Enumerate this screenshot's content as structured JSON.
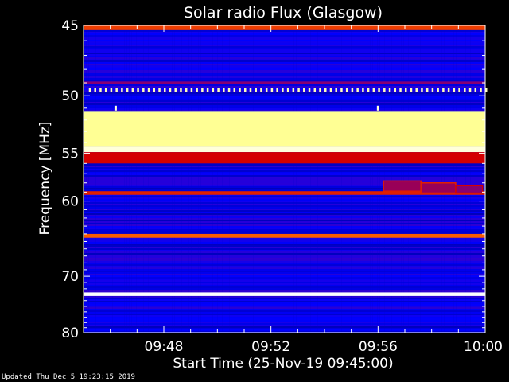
{
  "chart_data": {
    "type": "heatmap",
    "title": "Solar radio Flux (Glasgow)",
    "xlabel": "Start Time (25-Nov-19 09:45:00)",
    "ylabel": "Frequency [MHz]",
    "x_range_minutes": [
      0,
      15
    ],
    "x_ticks": [
      {
        "label": "09:48",
        "minute": 3
      },
      {
        "label": "09:52",
        "minute": 7
      },
      {
        "label": "09:56",
        "minute": 11
      },
      {
        "label": "10:00",
        "minute": 15
      }
    ],
    "y_range_mhz": [
      45,
      80
    ],
    "y_scale": "reciprocal",
    "y_ticks": [
      45,
      50,
      55,
      60,
      70,
      80
    ],
    "colormap": [
      "#000066",
      "#0000ff",
      "#7f0080",
      "#d40000",
      "#ff6600",
      "#ffff88",
      "#ffffff"
    ],
    "emission_bands": [
      {
        "mhz_from": 45.0,
        "mhz_to": 45.3,
        "level": 0.6
      },
      {
        "mhz_from": 48.9,
        "mhz_to": 49.1,
        "level": 0.35
      },
      {
        "mhz_from": 51.3,
        "mhz_to": 54.4,
        "level": 0.85
      },
      {
        "mhz_from": 54.4,
        "mhz_to": 54.9,
        "level": 0.95
      },
      {
        "mhz_from": 54.9,
        "mhz_to": 56.0,
        "level": 0.5
      },
      {
        "mhz_from": 58.9,
        "mhz_to": 59.3,
        "level": 0.55
      },
      {
        "mhz_from": 64.0,
        "mhz_to": 64.5,
        "level": 0.65
      },
      {
        "mhz_from": 72.6,
        "mhz_to": 73.2,
        "level": 1.0
      }
    ],
    "periodic_signal": {
      "mhz": 49.6,
      "minute_from": 0.2,
      "minute_to": 15,
      "period_minutes": 0.2,
      "level": 0.9
    },
    "bursts": [
      {
        "minute_from": 11.2,
        "minute_to": 12.6,
        "mhz_from": 57.8,
        "mhz_to": 58.9,
        "level": 0.55
      },
      {
        "minute_from": 12.6,
        "minute_to": 13.9,
        "mhz_from": 58.0,
        "mhz_to": 59.1,
        "level": 0.55
      },
      {
        "minute_from": 13.9,
        "minute_to": 14.9,
        "mhz_from": 58.3,
        "mhz_to": 59.1,
        "level": 0.5
      }
    ],
    "spikes": [
      {
        "minute": 1.2,
        "mhz": 51.0,
        "level": 0.95
      },
      {
        "minute": 11.0,
        "mhz": 51.0,
        "level": 0.95
      }
    ]
  },
  "footer": "Updated Thu Dec  5 19:23:15 2019"
}
